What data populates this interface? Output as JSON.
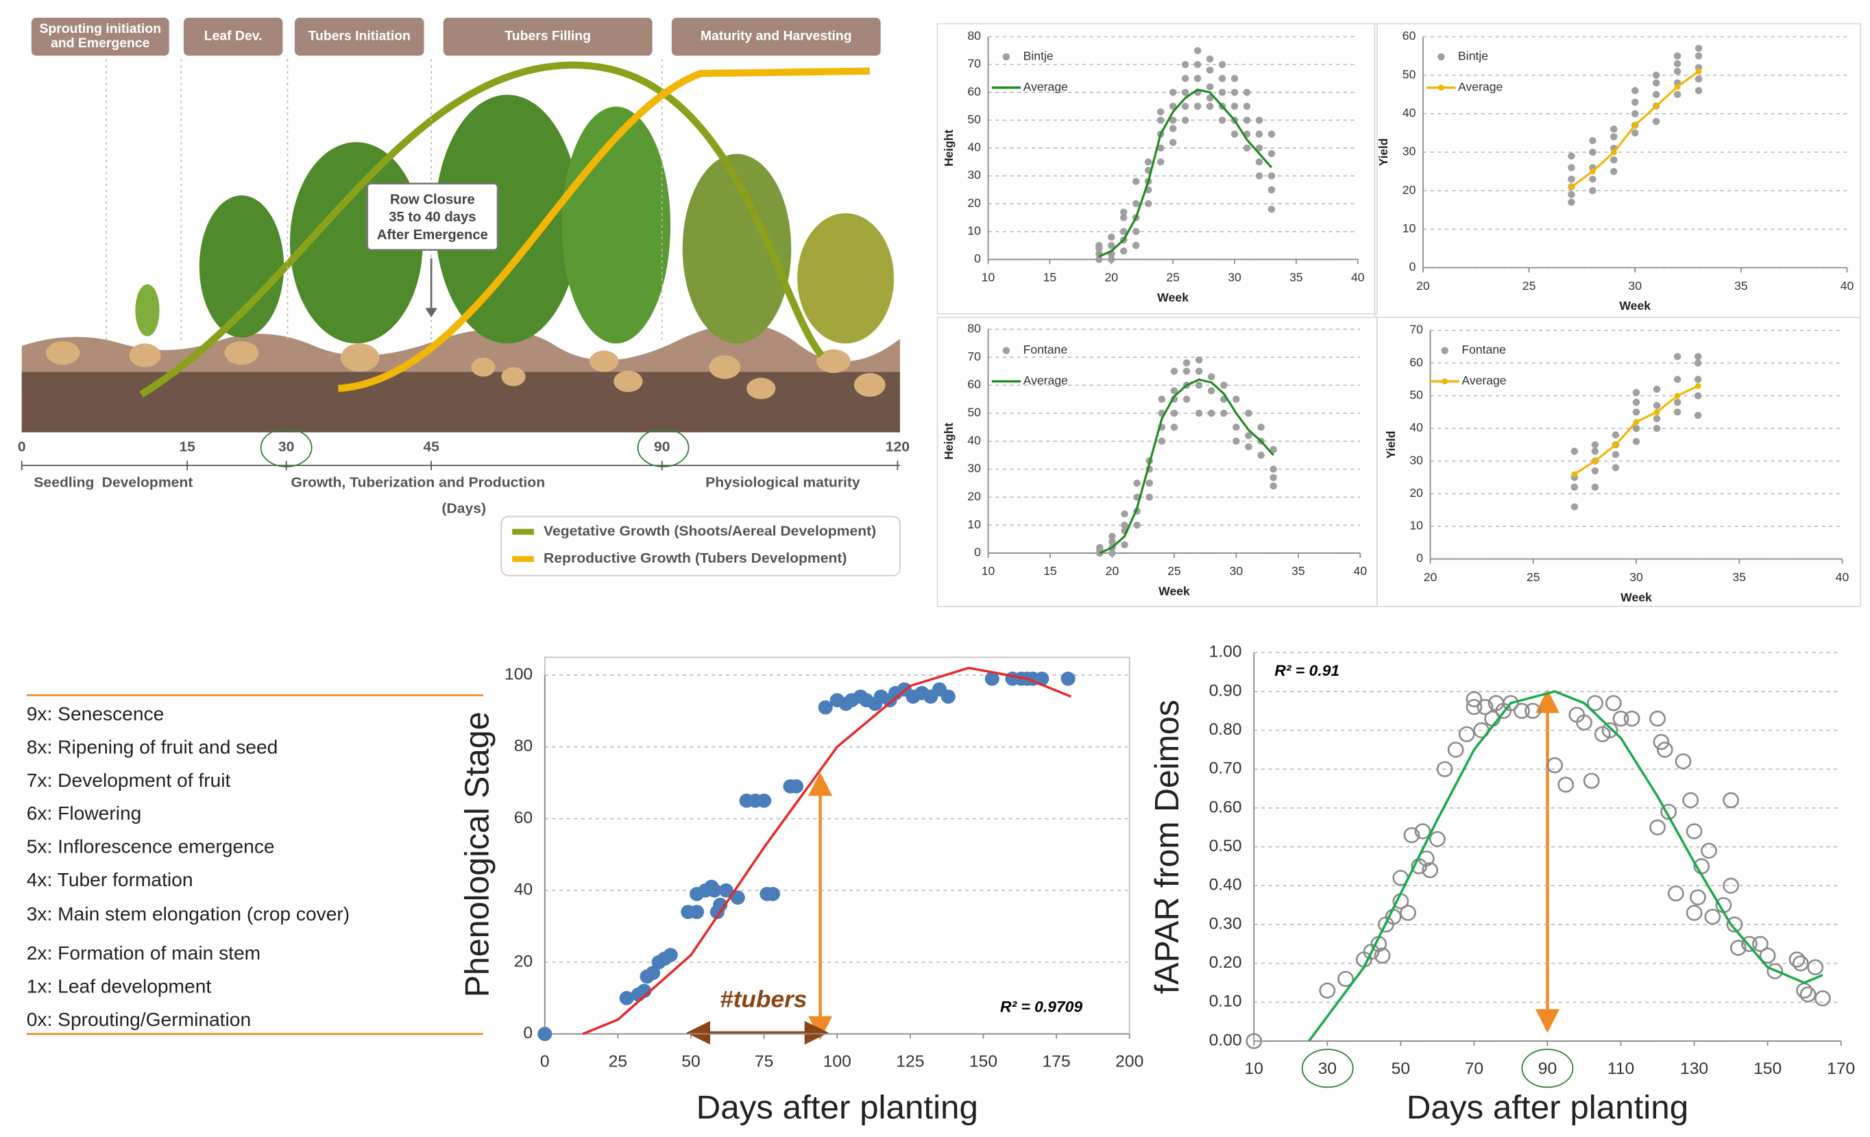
{
  "growth_diagram": {
    "stages": [
      [
        "Sprouting initiation",
        "and Emergence"
      ],
      [
        "Leaf Dev."
      ],
      [
        "Tubers Initiation"
      ],
      [
        "Tubers Filling"
      ],
      [
        "Maturity and Harvesting"
      ]
    ],
    "callout": [
      "Row Closure",
      "35 to 40 days",
      "After Emergence"
    ],
    "day_ticks": [
      0,
      15,
      30,
      45,
      90,
      120
    ],
    "day_unit": "(Days)",
    "phases": [
      "Seedling",
      "Development",
      "Growth, Tuberization and Production",
      "Physiological maturity"
    ],
    "legend": [
      "Vegetative Growth (Shoots/Aereal Development)",
      "Reproductive Growth (Tubers Development)"
    ]
  },
  "bbch_scale": {
    "items": [
      "9x: Senescence",
      "8x: Ripening of fruit and seed",
      "7x: Development of fruit",
      "6x: Flowering",
      "5x: Inflorescence emergence",
      "4x: Tuber formation",
      "3x: Main stem elongation (crop cover)",
      "2x: Formation of main stem",
      "1x: Leaf development",
      "0x: Sprouting/Germination"
    ]
  },
  "chart_data": [
    {
      "type": "scatter",
      "x_label": "Week",
      "y_label": "Height",
      "xlim": [
        10,
        40
      ],
      "ylim": [
        0,
        80
      ],
      "xticks": [
        10,
        15,
        20,
        25,
        30,
        35,
        40
      ],
      "yticks": [
        0,
        10,
        20,
        30,
        40,
        50,
        60,
        70,
        80
      ],
      "grid": true,
      "legend": "top-left",
      "series": [
        {
          "name": "Bintje",
          "color": "#a0a0a0",
          "mode": "markers",
          "x": [
            19,
            19,
            19,
            19,
            20,
            20,
            20,
            20,
            21,
            21,
            21,
            21,
            21,
            22,
            22,
            22,
            22,
            22,
            23,
            23,
            23,
            23,
            23,
            24,
            24,
            24,
            24,
            24,
            25,
            25,
            25,
            25,
            25,
            26,
            26,
            26,
            26,
            26,
            27,
            27,
            27,
            27,
            27,
            28,
            28,
            28,
            28,
            28,
            29,
            29,
            29,
            29,
            29,
            30,
            30,
            30,
            30,
            30,
            31,
            31,
            31,
            31,
            31,
            32,
            32,
            32,
            32,
            32,
            33,
            33,
            33,
            33,
            33
          ],
          "values": [
            0,
            2,
            4,
            5,
            0,
            2,
            5,
            8,
            3,
            7,
            10,
            15,
            17,
            5,
            10,
            15,
            20,
            28,
            20,
            25,
            28,
            32,
            35,
            35,
            40,
            45,
            50,
            53,
            42,
            47,
            50,
            55,
            60,
            50,
            55,
            60,
            65,
            70,
            55,
            60,
            65,
            70,
            75,
            55,
            58,
            62,
            68,
            72,
            50,
            55,
            60,
            65,
            70,
            45,
            50,
            55,
            60,
            65,
            40,
            45,
            50,
            55,
            60,
            30,
            35,
            40,
            45,
            50,
            18,
            25,
            30,
            38,
            45
          ]
        },
        {
          "name": "Average",
          "color": "#1e8c1e",
          "mode": "lines",
          "x": [
            19,
            20,
            21,
            22,
            23,
            24,
            25,
            26,
            27,
            28,
            29,
            30,
            31,
            32,
            33
          ],
          "values": [
            1,
            3,
            7,
            15,
            28,
            45,
            53,
            58,
            61,
            60,
            55,
            50,
            43,
            38,
            33
          ]
        }
      ]
    },
    {
      "type": "scatter",
      "x_label": "Week",
      "y_label": "Yield",
      "xlim": [
        20,
        40
      ],
      "ylim": [
        0,
        60
      ],
      "xticks": [
        20,
        25,
        30,
        35,
        40
      ],
      "yticks": [
        0,
        10,
        20,
        30,
        40,
        50,
        60
      ],
      "grid": true,
      "legend": "top-left",
      "series": [
        {
          "name": "Bintje",
          "color": "#a0a0a0",
          "mode": "markers",
          "x": [
            27,
            27,
            27,
            27,
            27,
            27,
            28,
            28,
            28,
            28,
            28,
            29,
            29,
            29,
            29,
            29,
            30,
            30,
            30,
            30,
            30,
            31,
            31,
            31,
            31,
            31,
            32,
            32,
            32,
            32,
            32,
            33,
            33,
            33,
            33,
            33
          ],
          "values": [
            17,
            19,
            21,
            23,
            26,
            29,
            20,
            23,
            26,
            30,
            33,
            25,
            28,
            31,
            34,
            36,
            35,
            37,
            40,
            43,
            46,
            38,
            42,
            45,
            48,
            50,
            45,
            48,
            51,
            53,
            55,
            46,
            49,
            52,
            55,
            57
          ]
        },
        {
          "name": "Average",
          "color": "#f2b705",
          "mode": "lines+markers",
          "x": [
            27,
            28,
            29,
            30,
            31,
            32,
            33
          ],
          "values": [
            21,
            25,
            30,
            37,
            42,
            47,
            51
          ]
        }
      ]
    },
    {
      "type": "scatter",
      "x_label": "Week",
      "y_label": "Height",
      "xlim": [
        10,
        40
      ],
      "ylim": [
        0,
        80
      ],
      "xticks": [
        10,
        15,
        20,
        25,
        30,
        35,
        40
      ],
      "yticks": [
        0,
        10,
        20,
        30,
        40,
        50,
        60,
        70,
        80
      ],
      "grid": true,
      "legend": "top-left",
      "series": [
        {
          "name": "Fontane",
          "color": "#a0a0a0",
          "mode": "markers",
          "x": [
            19,
            19,
            19,
            20,
            20,
            20,
            20,
            21,
            21,
            21,
            21,
            22,
            22,
            22,
            22,
            23,
            23,
            23,
            23,
            24,
            24,
            24,
            24,
            25,
            25,
            25,
            25,
            25,
            26,
            26,
            26,
            26,
            27,
            27,
            27,
            27,
            28,
            28,
            28,
            29,
            29,
            29,
            30,
            30,
            30,
            31,
            31,
            31,
            32,
            32,
            32,
            33,
            33,
            33,
            33
          ],
          "values": [
            0,
            1,
            2,
            0,
            2,
            4,
            6,
            3,
            8,
            10,
            14,
            10,
            15,
            20,
            25,
            20,
            25,
            30,
            33,
            40,
            45,
            50,
            55,
            45,
            50,
            55,
            58,
            65,
            55,
            60,
            65,
            68,
            50,
            60,
            65,
            69,
            50,
            58,
            63,
            50,
            55,
            60,
            40,
            45,
            55,
            38,
            42,
            50,
            35,
            40,
            45,
            24,
            27,
            30,
            37
          ]
        },
        {
          "name": "Average",
          "color": "#1e8c1e",
          "mode": "lines",
          "x": [
            19,
            20,
            21,
            22,
            23,
            24,
            25,
            26,
            27,
            28,
            29,
            30,
            31,
            32,
            33
          ],
          "values": [
            0,
            2,
            6,
            16,
            32,
            48,
            56,
            60,
            62,
            61,
            57,
            50,
            44,
            40,
            35
          ]
        }
      ]
    },
    {
      "type": "scatter",
      "x_label": "Week",
      "y_label": "Yield",
      "xlim": [
        20,
        40
      ],
      "ylim": [
        0,
        70
      ],
      "xticks": [
        20,
        25,
        30,
        35,
        40
      ],
      "yticks": [
        0,
        10,
        20,
        30,
        40,
        50,
        60,
        70
      ],
      "grid": true,
      "legend": "top-left",
      "series": [
        {
          "name": "Fontane",
          "color": "#a0a0a0",
          "mode": "markers",
          "x": [
            27,
            27,
            27,
            27,
            28,
            28,
            28,
            28,
            28,
            29,
            29,
            29,
            29,
            30,
            30,
            30,
            30,
            30,
            31,
            31,
            31,
            31,
            32,
            32,
            32,
            32,
            33,
            33,
            33,
            33,
            33
          ],
          "values": [
            16,
            22,
            25,
            33,
            22,
            27,
            30,
            33,
            35,
            28,
            32,
            35,
            38,
            36,
            40,
            45,
            48,
            51,
            40,
            43,
            47,
            52,
            45,
            48,
            55,
            62,
            44,
            50,
            55,
            60,
            62
          ]
        },
        {
          "name": "Average",
          "color": "#f2b705",
          "mode": "lines+markers",
          "x": [
            27,
            28,
            29,
            30,
            31,
            32,
            33
          ],
          "values": [
            26,
            30,
            35,
            42,
            45,
            50,
            53
          ]
        }
      ]
    },
    {
      "type": "scatter",
      "x_label": "Days after planting",
      "y_label": "Phenological Stage",
      "xlim": [
        0,
        200
      ],
      "ylim": [
        0,
        100
      ],
      "xticks": [
        0,
        25,
        50,
        75,
        100,
        125,
        150,
        175,
        200
      ],
      "yticks": [
        0,
        20,
        40,
        60,
        80,
        100
      ],
      "grid": true,
      "annotations": [
        "R² = 0.9709",
        "#tubers"
      ],
      "series": [
        {
          "color": "#4a7ebb",
          "mode": "markers",
          "x": [
            0,
            28,
            32,
            34,
            35,
            37,
            39,
            41,
            43,
            49,
            52,
            52,
            55,
            57,
            58,
            59,
            60,
            62,
            66,
            69,
            72,
            75,
            76,
            78,
            84,
            86,
            96,
            100,
            103,
            105,
            108,
            110,
            113,
            115,
            118,
            120,
            123,
            126,
            129,
            132,
            135,
            138,
            153,
            160,
            163,
            165,
            167,
            170,
            179
          ],
          "values": [
            0,
            10,
            11,
            12,
            16,
            17,
            20,
            21,
            22,
            34,
            34,
            39,
            40,
            41,
            40,
            34,
            36,
            40,
            38,
            65,
            65,
            65,
            39,
            39,
            69,
            69,
            91,
            93,
            92,
            93,
            94,
            93,
            92,
            94,
            93,
            95,
            96,
            94,
            95,
            94,
            96,
            94,
            99,
            99,
            99,
            99,
            99,
            99,
            99
          ]
        },
        {
          "color": "#e8282b",
          "mode": "lines",
          "x": [
            13,
            25,
            50,
            75,
            100,
            125,
            145,
            165,
            180
          ],
          "values": [
            0,
            4,
            22,
            52,
            80,
            97,
            102,
            99,
            94
          ]
        }
      ]
    },
    {
      "type": "scatter",
      "x_label": "Days after planting",
      "y_label": "fAPAR from Deimos",
      "xlim": [
        10,
        170
      ],
      "ylim": [
        0,
        1
      ],
      "xticks": [
        10,
        30,
        50,
        70,
        90,
        110,
        130,
        150,
        170
      ],
      "yticks": [
        {
          "value": 0,
          "label": "0.00"
        },
        {
          "value": 0.1,
          "label": "0.10"
        },
        {
          "value": 0.2,
          "label": "0.20"
        },
        {
          "value": 0.3,
          "label": "0.30"
        },
        {
          "value": 0.4,
          "label": "0.40"
        },
        {
          "value": 0.5,
          "label": "0.50"
        },
        {
          "value": 0.6,
          "label": "0.60"
        },
        {
          "value": 0.7,
          "label": "0.70"
        },
        {
          "value": 0.8,
          "label": "0.80"
        },
        {
          "value": 0.9,
          "label": "0.90"
        },
        {
          "value": 1,
          "label": "1.00"
        }
      ],
      "grid": true,
      "annotations": [
        "R² = 0.91"
      ],
      "series": [
        {
          "color": "#8c8c8c",
          "mode": "hollow-markers",
          "x": [
            10,
            30,
            35,
            40,
            42,
            44,
            45,
            46,
            48,
            50,
            50,
            52,
            53,
            55,
            56,
            57,
            58,
            60,
            62,
            65,
            68,
            70,
            70,
            72,
            73,
            75,
            76,
            78,
            80,
            83,
            86,
            92,
            95,
            98,
            100,
            102,
            103,
            105,
            107,
            108,
            110,
            113,
            120,
            121,
            122,
            123,
            120,
            125,
            127,
            129,
            130,
            130,
            131,
            132,
            134,
            135,
            138,
            140,
            140,
            141,
            142,
            145,
            148,
            150,
            152,
            158,
            159,
            160,
            161,
            163,
            165
          ],
          "values": [
            0,
            0.13,
            0.16,
            0.21,
            0.23,
            0.25,
            0.22,
            0.3,
            0.32,
            0.36,
            0.42,
            0.33,
            0.53,
            0.45,
            0.54,
            0.47,
            0.44,
            0.52,
            0.7,
            0.75,
            0.79,
            0.88,
            0.86,
            0.8,
            0.86,
            0.83,
            0.87,
            0.85,
            0.87,
            0.85,
            0.85,
            0.71,
            0.66,
            0.84,
            0.82,
            0.67,
            0.87,
            0.79,
            0.8,
            0.87,
            0.83,
            0.83,
            0.83,
            0.77,
            0.75,
            0.59,
            0.55,
            0.38,
            0.72,
            0.62,
            0.54,
            0.33,
            0.37,
            0.45,
            0.49,
            0.32,
            0.35,
            0.62,
            0.4,
            0.3,
            0.24,
            0.25,
            0.25,
            0.22,
            0.18,
            0.21,
            0.2,
            0.13,
            0.12,
            0.19,
            0.11
          ]
        },
        {
          "color": "#1aab4b",
          "mode": "lines",
          "x": [
            25,
            40,
            50,
            60,
            70,
            80,
            92,
            100,
            110,
            120,
            130,
            140,
            150,
            160,
            165
          ],
          "values": [
            0,
            0.19,
            0.38,
            0.57,
            0.75,
            0.87,
            0.9,
            0.87,
            0.78,
            0.63,
            0.46,
            0.3,
            0.19,
            0.15,
            0.17
          ]
        }
      ]
    }
  ]
}
